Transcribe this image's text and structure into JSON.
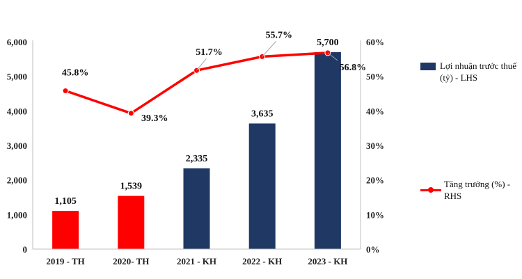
{
  "chart_data": {
    "type": "bar",
    "categories": [
      "2019 - TH",
      "2020- TH",
      "2021 - KH",
      "2022 - KH",
      "2023 - KH"
    ],
    "series": [
      {
        "name": "Lợi nhuận trước thuế (tỷ) - LHS",
        "type": "bar",
        "axis": "left",
        "values": [
          1105,
          1539,
          2335,
          3635,
          5700
        ],
        "labels": [
          "1,105",
          "1,539",
          "2,335",
          "3,635",
          "5,700"
        ],
        "colors": [
          "#ff0000",
          "#ff0000",
          "#1f3864",
          "#1f3864",
          "#1f3864"
        ]
      },
      {
        "name": "Tăng trưởng (%) - RHS",
        "type": "line",
        "axis": "right",
        "values": [
          45.8,
          39.3,
          51.7,
          55.7,
          56.8
        ],
        "labels": [
          "45.8%",
          "39.3%",
          "51.7%",
          "55.7%",
          "56.8%"
        ],
        "color": "#ff0000"
      }
    ],
    "y_left": {
      "ylim": [
        0,
        6000
      ],
      "ticks": [
        0,
        1000,
        2000,
        3000,
        4000,
        5000,
        6000
      ],
      "tick_labels": [
        "0",
        "1,000",
        "2,000",
        "3,000",
        "4,000",
        "5,000",
        "6,000"
      ]
    },
    "y_right": {
      "ylim": [
        0,
        60
      ],
      "ticks": [
        0,
        10,
        20,
        30,
        40,
        50,
        60
      ],
      "tick_labels": [
        "0%",
        "10%",
        "20%",
        "30%",
        "40%",
        "50%",
        "60%"
      ]
    },
    "grid": false,
    "legend_position": "right"
  }
}
